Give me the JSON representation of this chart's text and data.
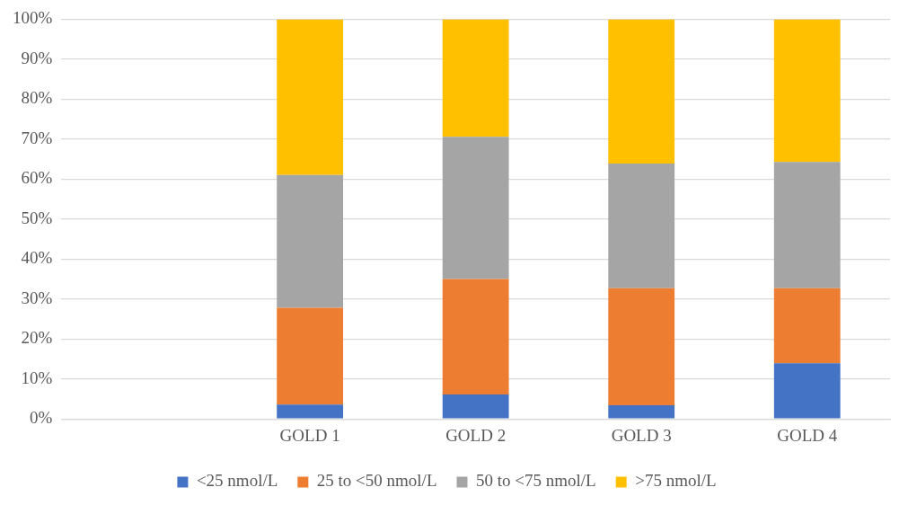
{
  "chart_data": {
    "type": "bar",
    "stacked": true,
    "categories": [
      null,
      "GOLD 1",
      "GOLD 2",
      "GOLD 3",
      "GOLD 4"
    ],
    "series": [
      {
        "name": "<25 nmol/L",
        "color": "#4472c4",
        "values": [
          null,
          3.6,
          6.1,
          3.4,
          13.9
        ]
      },
      {
        "name": "25 to <50 nmol/L",
        "color": "#ed7d31",
        "values": [
          null,
          24.2,
          28.9,
          29.3,
          18.8
        ]
      },
      {
        "name": "50 to <75 nmol/L",
        "color": "#a5a5a5",
        "values": [
          null,
          33.2,
          35.6,
          31.2,
          31.6
        ]
      },
      {
        "name": ">75 nmol/L",
        "color": "#ffc000",
        "values": [
          null,
          39.0,
          29.4,
          36.1,
          35.7
        ]
      }
    ],
    "ylim": [
      0,
      100
    ],
    "yticks": [
      {
        "value": 0,
        "label": "0%"
      },
      {
        "value": 10,
        "label": "10%"
      },
      {
        "value": 20,
        "label": "20%"
      },
      {
        "value": 30,
        "label": "30%"
      },
      {
        "value": 40,
        "label": "40%"
      },
      {
        "value": 50,
        "label": "50%"
      },
      {
        "value": 60,
        "label": "60%"
      },
      {
        "value": 70,
        "label": "70%"
      },
      {
        "value": 80,
        "label": "80%"
      },
      {
        "value": 90,
        "label": "90%"
      },
      {
        "value": 100,
        "label": "100%"
      }
    ],
    "grid": "y",
    "legend": "bottom"
  }
}
